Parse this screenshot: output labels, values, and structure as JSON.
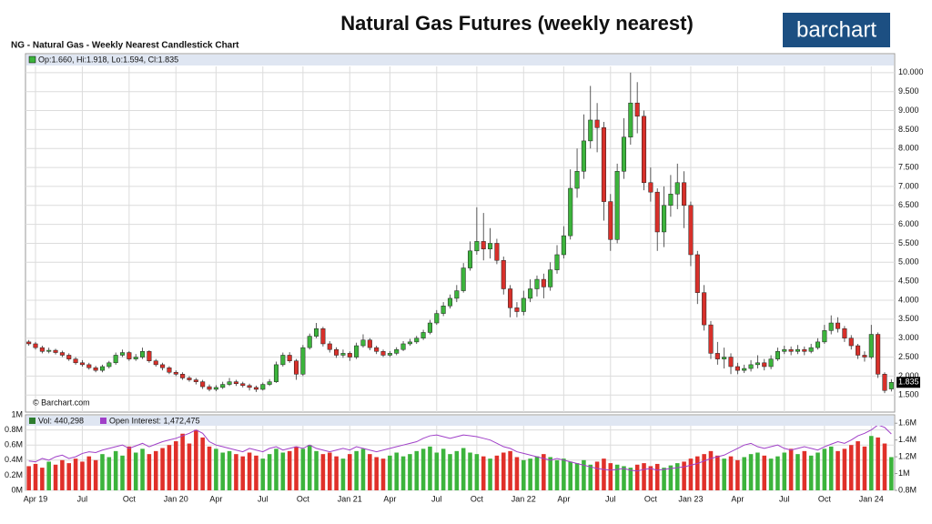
{
  "header": {
    "title": "Natural Gas Futures (weekly nearest)",
    "logo": "barchart"
  },
  "chart_data": [
    {
      "type": "candlestick",
      "title": "NG - Natural Gas - Weekly Nearest Candlestick Chart",
      "legend": "Op:1.660, Hi:1.918, Lo:1.594, Cl:1.835",
      "watermark": "© Barchart.com",
      "up_color": "#3cb43c",
      "down_color": "#d8302a",
      "grid": true,
      "ylim": [
        1.05,
        10.5
      ],
      "yticks": [
        {
          "value": 1.5,
          "label": "1.500"
        },
        {
          "value": 2,
          "label": "2.000"
        },
        {
          "value": 2.5,
          "label": "2.500"
        },
        {
          "value": 3,
          "label": "3.000"
        },
        {
          "value": 3.5,
          "label": "3.500"
        },
        {
          "value": 4,
          "label": "4.000"
        },
        {
          "value": 4.5,
          "label": "4.500"
        },
        {
          "value": 5,
          "label": "5.000"
        },
        {
          "value": 5.5,
          "label": "5.500"
        },
        {
          "value": 6,
          "label": "6.000"
        },
        {
          "value": 6.5,
          "label": "6.500"
        },
        {
          "value": 7,
          "label": "7.000"
        },
        {
          "value": 7.5,
          "label": "7.500"
        },
        {
          "value": 8,
          "label": "8.000"
        },
        {
          "value": 8.5,
          "label": "8.500"
        },
        {
          "value": 9,
          "label": "9.000"
        },
        {
          "value": 9.5,
          "label": "9.500"
        },
        {
          "value": 10,
          "label": "10.000"
        }
      ],
      "categories": [
        null,
        "Apr 19",
        null,
        null,
        null,
        null,
        null,
        null,
        "Jul",
        null,
        null,
        null,
        null,
        null,
        null,
        "Oct",
        null,
        null,
        null,
        null,
        null,
        null,
        "Jan 20",
        null,
        null,
        null,
        null,
        null,
        "Apr",
        null,
        null,
        null,
        null,
        null,
        null,
        "Jul",
        null,
        null,
        null,
        null,
        null,
        "Oct",
        null,
        null,
        null,
        null,
        null,
        null,
        "Jan 21",
        null,
        null,
        null,
        null,
        null,
        "Apr",
        null,
        null,
        null,
        null,
        null,
        null,
        "Jul",
        null,
        null,
        null,
        null,
        null,
        "Oct",
        null,
        null,
        null,
        null,
        null,
        null,
        "Jan 22",
        null,
        null,
        null,
        null,
        null,
        "Apr",
        null,
        null,
        null,
        null,
        null,
        null,
        "Jul",
        null,
        null,
        null,
        null,
        null,
        "Oct",
        null,
        null,
        null,
        null,
        null,
        "Jan 23",
        null,
        null,
        null,
        null,
        null,
        null,
        "Apr",
        null,
        null,
        null,
        null,
        null,
        null,
        "Jul",
        null,
        null,
        null,
        null,
        null,
        "Oct",
        null,
        null,
        null,
        null,
        null,
        null,
        "Jan 24",
        null,
        null,
        null
      ],
      "open": [
        2.9,
        2.85,
        2.75,
        2.65,
        2.68,
        2.62,
        2.55,
        2.45,
        2.35,
        2.3,
        2.22,
        2.15,
        2.25,
        2.35,
        2.55,
        2.62,
        2.45,
        2.5,
        2.65,
        2.4,
        2.3,
        2.22,
        2.1,
        2.05,
        1.95,
        1.9,
        1.85,
        1.72,
        1.65,
        1.7,
        1.78,
        1.85,
        1.8,
        1.75,
        1.7,
        1.65,
        1.78,
        1.85,
        2.3,
        2.55,
        2.4,
        2.05,
        2.75,
        3.05,
        3.25,
        2.85,
        2.7,
        2.55,
        2.6,
        2.5,
        2.8,
        2.95,
        2.75,
        2.65,
        2.55,
        2.6,
        2.7,
        2.85,
        2.9,
        3.0,
        3.15,
        3.4,
        3.65,
        3.85,
        4.05,
        4.25,
        4.85,
        5.3,
        5.55,
        5.35,
        5.5,
        5.05,
        4.3,
        3.8,
        3.7,
        4.05,
        4.3,
        4.55,
        4.35,
        4.8,
        5.2,
        5.7,
        6.95,
        7.4,
        8.2,
        8.75,
        8.55,
        6.6,
        5.6,
        7.4,
        8.3,
        9.2,
        8.85,
        7.1,
        6.85,
        5.8,
        6.5,
        6.8,
        7.1,
        6.5,
        5.2,
        4.2,
        3.35,
        2.6,
        2.45,
        2.5,
        2.25,
        2.15,
        2.2,
        2.3,
        2.35,
        2.25,
        2.45,
        2.65,
        2.7,
        2.65,
        2.7,
        2.65,
        2.75,
        2.9,
        3.2,
        3.4,
        3.25,
        3.0,
        2.8,
        2.55,
        2.5,
        3.1,
        2.05,
        1.66
      ],
      "high": [
        2.95,
        2.9,
        2.8,
        2.75,
        2.72,
        2.67,
        2.6,
        2.5,
        2.42,
        2.35,
        2.27,
        2.3,
        2.4,
        2.62,
        2.7,
        2.66,
        2.58,
        2.75,
        2.68,
        2.45,
        2.35,
        2.26,
        2.15,
        2.1,
        2.0,
        1.95,
        1.9,
        1.78,
        1.76,
        1.85,
        1.95,
        1.9,
        1.85,
        1.8,
        1.75,
        1.83,
        1.92,
        2.38,
        2.62,
        2.63,
        2.45,
        2.82,
        3.12,
        3.4,
        3.3,
        2.92,
        2.76,
        2.7,
        2.65,
        2.88,
        3.1,
        3.0,
        2.8,
        2.7,
        2.66,
        2.76,
        2.92,
        2.98,
        3.06,
        3.22,
        3.48,
        3.74,
        3.95,
        4.15,
        4.4,
        4.98,
        5.55,
        6.45,
        6.3,
        5.9,
        5.62,
        5.15,
        4.4,
        3.95,
        4.25,
        4.55,
        4.65,
        4.7,
        5.0,
        5.45,
        5.95,
        7.45,
        8.0,
        8.9,
        9.65,
        9.2,
        8.7,
        6.8,
        7.6,
        8.8,
        10.0,
        9.75,
        9.0,
        7.5,
        6.95,
        7.0,
        7.3,
        7.6,
        7.4,
        6.6,
        5.3,
        4.4,
        3.45,
        2.9,
        2.75,
        2.6,
        2.35,
        2.3,
        2.42,
        2.55,
        2.45,
        2.55,
        2.75,
        2.8,
        2.78,
        2.82,
        2.78,
        2.85,
        3.0,
        3.35,
        3.6,
        3.55,
        3.32,
        3.08,
        2.85,
        2.65,
        3.35,
        3.15,
        2.1,
        1.918
      ],
      "low": [
        2.8,
        2.7,
        2.6,
        2.6,
        2.57,
        2.5,
        2.4,
        2.3,
        2.25,
        2.17,
        2.1,
        2.1,
        2.2,
        2.3,
        2.5,
        2.4,
        2.4,
        2.45,
        2.35,
        2.25,
        2.15,
        2.05,
        2.0,
        1.9,
        1.85,
        1.78,
        1.66,
        1.6,
        1.6,
        1.66,
        1.74,
        1.74,
        1.7,
        1.62,
        1.58,
        1.62,
        1.74,
        1.82,
        2.25,
        2.35,
        1.9,
        2.0,
        2.7,
        3.0,
        2.78,
        2.62,
        2.48,
        2.48,
        2.4,
        2.45,
        2.75,
        2.68,
        2.58,
        2.5,
        2.5,
        2.55,
        2.66,
        2.8,
        2.85,
        2.95,
        3.1,
        3.35,
        3.58,
        3.78,
        3.95,
        4.2,
        4.78,
        5.2,
        5.05,
        5.1,
        4.95,
        4.15,
        3.55,
        3.55,
        3.6,
        3.95,
        4.1,
        4.05,
        4.25,
        4.7,
        5.1,
        5.6,
        6.7,
        7.2,
        8.0,
        7.9,
        6.1,
        5.3,
        5.5,
        7.2,
        8.1,
        8.4,
        6.9,
        6.6,
        5.3,
        5.4,
        6.2,
        6.4,
        5.9,
        4.9,
        3.9,
        3.2,
        2.45,
        2.3,
        2.2,
        2.05,
        2.05,
        2.08,
        2.12,
        2.2,
        2.15,
        2.18,
        2.4,
        2.58,
        2.55,
        2.58,
        2.55,
        2.6,
        2.7,
        2.85,
        3.1,
        3.15,
        2.9,
        2.7,
        2.45,
        2.38,
        2.45,
        1.95,
        1.55,
        1.594
      ],
      "close": [
        2.85,
        2.75,
        2.65,
        2.68,
        2.62,
        2.55,
        2.45,
        2.35,
        2.3,
        2.22,
        2.15,
        2.25,
        2.35,
        2.55,
        2.62,
        2.45,
        2.5,
        2.65,
        2.4,
        2.3,
        2.22,
        2.1,
        2.05,
        1.95,
        1.9,
        1.85,
        1.72,
        1.65,
        1.7,
        1.78,
        1.85,
        1.8,
        1.75,
        1.7,
        1.65,
        1.78,
        1.85,
        2.3,
        2.55,
        2.4,
        2.05,
        2.75,
        3.05,
        3.25,
        2.85,
        2.7,
        2.55,
        2.6,
        2.5,
        2.8,
        2.95,
        2.75,
        2.65,
        2.55,
        2.6,
        2.7,
        2.85,
        2.9,
        3.0,
        3.15,
        3.4,
        3.65,
        3.85,
        4.05,
        4.25,
        4.85,
        5.3,
        5.55,
        5.35,
        5.5,
        5.05,
        4.3,
        3.8,
        3.7,
        4.05,
        4.3,
        4.55,
        4.35,
        4.8,
        5.2,
        5.7,
        6.95,
        7.4,
        8.2,
        8.75,
        8.55,
        6.6,
        5.6,
        7.4,
        8.3,
        9.2,
        8.85,
        7.1,
        6.85,
        5.8,
        6.5,
        6.8,
        7.1,
        6.5,
        5.2,
        4.2,
        3.35,
        2.6,
        2.45,
        2.5,
        2.25,
        2.15,
        2.2,
        2.3,
        2.35,
        2.25,
        2.45,
        2.65,
        2.7,
        2.65,
        2.7,
        2.65,
        2.75,
        2.9,
        3.2,
        3.4,
        3.25,
        3.0,
        2.8,
        2.55,
        2.5,
        3.1,
        2.05,
        1.62,
        1.835
      ]
    },
    {
      "type": "bar",
      "ylim": [
        0,
        1
      ],
      "yticks": [
        {
          "value": 0,
          "label": "0M"
        },
        {
          "value": 0.2,
          "label": "0.2M"
        },
        {
          "value": 0.4,
          "label": "0.4M"
        },
        {
          "value": 0.6,
          "label": "0.6M"
        },
        {
          "value": 0.8,
          "label": "0.8M"
        },
        {
          "value": 1,
          "label": "1M"
        }
      ],
      "y2lim": [
        0.8,
        1.7
      ],
      "y2ticks": [
        {
          "value": 0.8,
          "label": "0.8M"
        },
        {
          "value": 1,
          "label": "1M"
        },
        {
          "value": 1.2,
          "label": "1.2M"
        },
        {
          "value": 1.4,
          "label": "1.4M"
        },
        {
          "value": 1.6,
          "label": "1.6M"
        }
      ],
      "series": [
        {
          "name": "Vol: 440,298",
          "color": "#2e7d2e",
          "up_color": "#3cb43c",
          "down_color": "#e0302a",
          "values": [
            0.32,
            0.35,
            0.3,
            0.38,
            0.34,
            0.4,
            0.36,
            0.42,
            0.38,
            0.45,
            0.4,
            0.48,
            0.44,
            0.52,
            0.46,
            0.58,
            0.5,
            0.55,
            0.48,
            0.52,
            0.56,
            0.6,
            0.65,
            0.75,
            0.62,
            0.8,
            0.7,
            0.58,
            0.55,
            0.5,
            0.52,
            0.48,
            0.45,
            0.5,
            0.46,
            0.42,
            0.48,
            0.55,
            0.5,
            0.52,
            0.58,
            0.55,
            0.6,
            0.52,
            0.48,
            0.5,
            0.45,
            0.42,
            0.48,
            0.52,
            0.55,
            0.48,
            0.44,
            0.42,
            0.46,
            0.5,
            0.45,
            0.48,
            0.52,
            0.55,
            0.58,
            0.5,
            0.55,
            0.48,
            0.52,
            0.56,
            0.5,
            0.48,
            0.45,
            0.42,
            0.46,
            0.5,
            0.52,
            0.44,
            0.4,
            0.42,
            0.45,
            0.48,
            0.44,
            0.4,
            0.42,
            0.38,
            0.36,
            0.4,
            0.34,
            0.38,
            0.42,
            0.36,
            0.34,
            0.32,
            0.3,
            0.34,
            0.36,
            0.32,
            0.35,
            0.3,
            0.33,
            0.36,
            0.38,
            0.42,
            0.45,
            0.48,
            0.52,
            0.46,
            0.42,
            0.45,
            0.4,
            0.44,
            0.48,
            0.5,
            0.46,
            0.42,
            0.45,
            0.5,
            0.55,
            0.48,
            0.52,
            0.46,
            0.5,
            0.55,
            0.58,
            0.52,
            0.55,
            0.6,
            0.65,
            0.58,
            0.72,
            0.7,
            0.62,
            0.44
          ]
        },
        {
          "name": "Open Interest: 1,472,475",
          "color": "#a040c8",
          "axis": "y2",
          "values": [
            1.15,
            1.14,
            1.18,
            1.16,
            1.2,
            1.22,
            1.18,
            1.2,
            1.24,
            1.26,
            1.25,
            1.28,
            1.3,
            1.32,
            1.34,
            1.3,
            1.33,
            1.36,
            1.32,
            1.35,
            1.38,
            1.4,
            1.42,
            1.45,
            1.48,
            1.52,
            1.48,
            1.38,
            1.34,
            1.32,
            1.3,
            1.28,
            1.26,
            1.3,
            1.28,
            1.26,
            1.3,
            1.32,
            1.28,
            1.3,
            1.32,
            1.3,
            1.34,
            1.3,
            1.28,
            1.26,
            1.28,
            1.3,
            1.28,
            1.32,
            1.3,
            1.28,
            1.26,
            1.28,
            1.3,
            1.32,
            1.34,
            1.36,
            1.38,
            1.42,
            1.45,
            1.46,
            1.44,
            1.42,
            1.44,
            1.46,
            1.45,
            1.44,
            1.42,
            1.4,
            1.36,
            1.32,
            1.3,
            1.26,
            1.24,
            1.22,
            1.2,
            1.18,
            1.16,
            1.18,
            1.16,
            1.14,
            1.12,
            1.1,
            1.08,
            1.06,
            1.05,
            1.04,
            1.05,
            1.06,
            1.04,
            1.03,
            1.05,
            1.06,
            1.04,
            1.05,
            1.06,
            1.07,
            1.08,
            1.1,
            1.12,
            1.15,
            1.18,
            1.2,
            1.22,
            1.26,
            1.3,
            1.34,
            1.36,
            1.32,
            1.3,
            1.32,
            1.34,
            1.3,
            1.28,
            1.3,
            1.32,
            1.3,
            1.28,
            1.32,
            1.35,
            1.38,
            1.36,
            1.4,
            1.45,
            1.48,
            1.52,
            1.58,
            1.55,
            1.472
          ]
        }
      ]
    }
  ]
}
